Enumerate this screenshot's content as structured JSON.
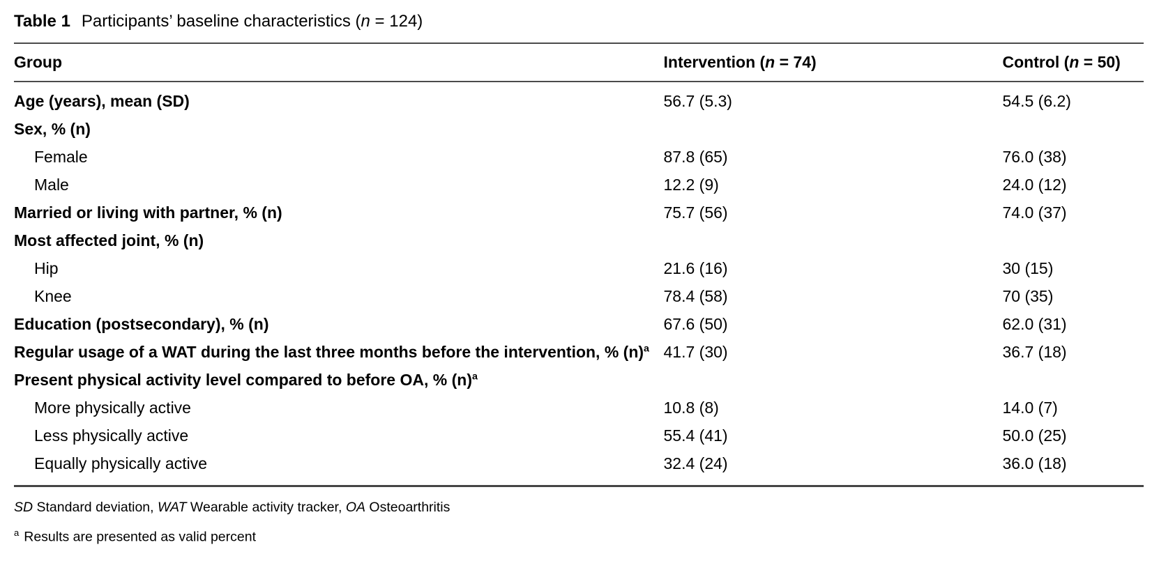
{
  "title": {
    "label": "Table 1",
    "text_pre": "Participants’ baseline characteristics (",
    "n": "n",
    "text_post": " = 124)"
  },
  "table": {
    "columns": {
      "group": "Group",
      "intervention": {
        "pre": "Intervention (",
        "n": "n",
        "post": " = 74)"
      },
      "control": {
        "pre": "Control (",
        "n": "n",
        "post": " = 50)"
      }
    },
    "rows": [
      {
        "label": "Age (years), mean (SD)",
        "intervention": "56.7 (5.3)",
        "control": "54.5 (6.2)"
      },
      {
        "label": "Sex, % (n)",
        "intervention": "",
        "control": ""
      },
      {
        "label": "Female",
        "intervention": "87.8 (65)",
        "control": "76.0 (38)"
      },
      {
        "label": "Male",
        "intervention": "12.2 (9)",
        "control": "24.0 (12)"
      },
      {
        "label": "Married or living with partner, % (n)",
        "intervention": "75.7 (56)",
        "control": "74.0 (37)"
      },
      {
        "label": "Most affected joint, % (n)",
        "intervention": "",
        "control": ""
      },
      {
        "label": "Hip",
        "intervention": "21.6 (16)",
        "control": "30 (15)"
      },
      {
        "label": "Knee",
        "intervention": "78.4 (58)",
        "control": "70 (35)"
      },
      {
        "label": "Education (postsecondary), % (n)",
        "intervention": "67.6 (50)",
        "control": "62.0 (31)"
      },
      {
        "label": "Regular usage of a WAT during the last three months before the intervention, % (n)",
        "sup": "a",
        "intervention": "41.7 (30)",
        "control": "36.7 (18)"
      },
      {
        "label": "Present physical activity level compared to before OA, % (n)",
        "sup": "a",
        "intervention": "",
        "control": ""
      },
      {
        "label": "More physically active",
        "intervention": "10.8 (8)",
        "control": "14.0 (7)"
      },
      {
        "label": "Less physically active",
        "intervention": "55.4 (41)",
        "control": "50.0 (25)"
      },
      {
        "label": "Equally physically active",
        "intervention": "32.4 (24)",
        "control": "36.0 (18)"
      }
    ]
  },
  "footnotes": {
    "abbreviations": {
      "seg0": "SD",
      "seg1": " Standard deviation, ",
      "seg2": "WAT",
      "seg3": " Wearable activity tracker, ",
      "seg4": "OA",
      "seg5": " Osteoarthritis"
    },
    "valid_percent": {
      "sup": "a",
      "text": "Results are presented as valid percent"
    }
  }
}
